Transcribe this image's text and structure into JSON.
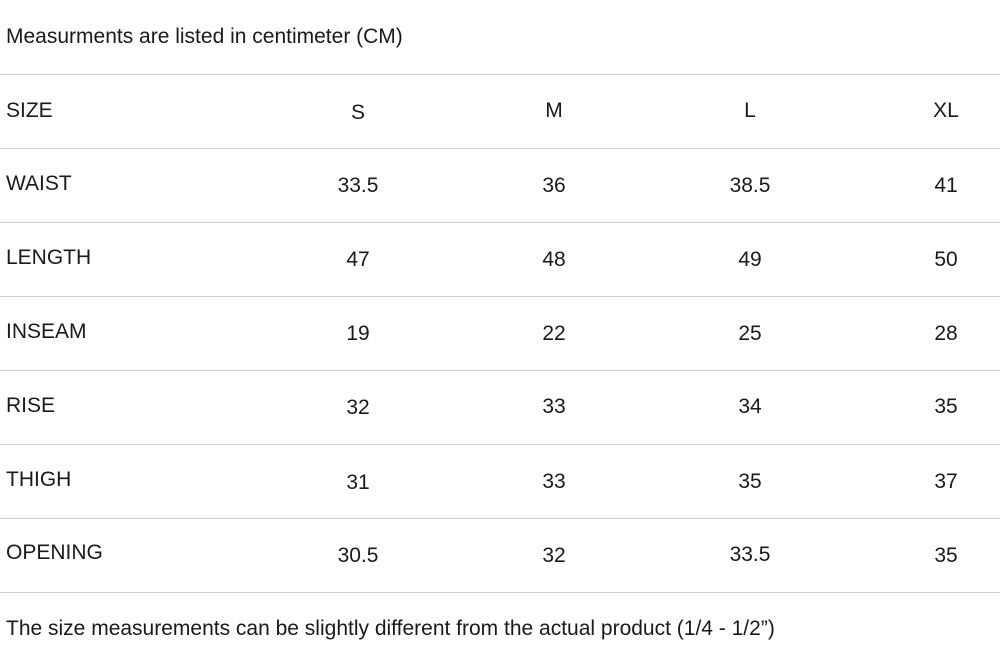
{
  "top_note": "Measurments are listed in centimeter (CM)",
  "bottom_note": "The size measurements can be slightly different from the actual product (1/4 - 1/2”)",
  "table": {
    "header": {
      "label": "SIZE",
      "columns": [
        "S",
        "M",
        "L",
        "XL"
      ]
    },
    "rows": [
      {
        "label": "WAIST",
        "values": [
          "33.5",
          "36",
          "38.5",
          "41"
        ]
      },
      {
        "label": "LENGTH",
        "values": [
          "47",
          "48",
          "49",
          "50"
        ]
      },
      {
        "label": "INSEAM",
        "values": [
          "19",
          "22",
          "25",
          "28"
        ]
      },
      {
        "label": "RISE",
        "values": [
          "32",
          "33",
          "34",
          "35"
        ]
      },
      {
        "label": "THIGH",
        "values": [
          "31",
          "33",
          "35",
          "37"
        ]
      },
      {
        "label": "OPENING",
        "values": [
          "30.5",
          "32",
          "33.5",
          "35"
        ]
      }
    ]
  }
}
